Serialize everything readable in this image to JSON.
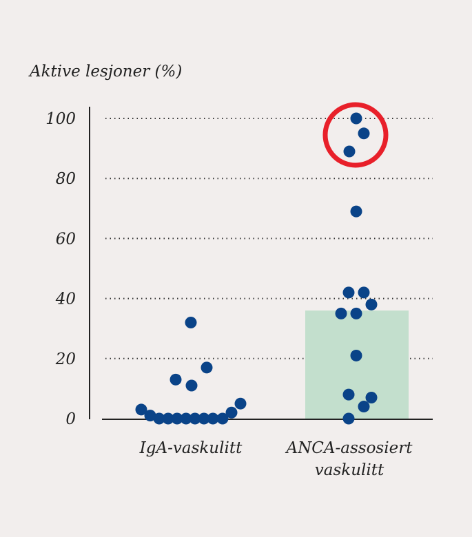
{
  "chart_data": {
    "type": "scatter",
    "title": "",
    "ylabel": "Aktive lesjoner (%)",
    "ylim": [
      0,
      100
    ],
    "yticks": [
      0,
      20,
      40,
      60,
      80,
      100
    ],
    "grid": true,
    "categories": [
      "IgA-vaskulitt",
      "ANCA-assosiert vaskulitt"
    ],
    "category_lines": [
      [
        "IgA-vaskulitt"
      ],
      [
        "ANCA-assosiert",
        "vaskulitt"
      ]
    ],
    "series": [
      {
        "category": "IgA-vaskulitt",
        "values": [
          3,
          1,
          0,
          0,
          0,
          0,
          0,
          0,
          0,
          0,
          2,
          5,
          13,
          11,
          17,
          32
        ],
        "bar": null
      },
      {
        "category": "ANCA-assosiert vaskulitt",
        "values": [
          100,
          95,
          89,
          69,
          42,
          42,
          38,
          35,
          35,
          21,
          8,
          7,
          4,
          0
        ],
        "bar": 36
      }
    ],
    "highlight": {
      "category": "ANCA-assosiert vaskulitt",
      "values": [
        100,
        95,
        89
      ],
      "shape": "circle"
    },
    "colors": {
      "point": "#0a4388",
      "bar": "#c3dfcd",
      "highlight": "#e8202a",
      "background": "#f2eeed"
    }
  }
}
